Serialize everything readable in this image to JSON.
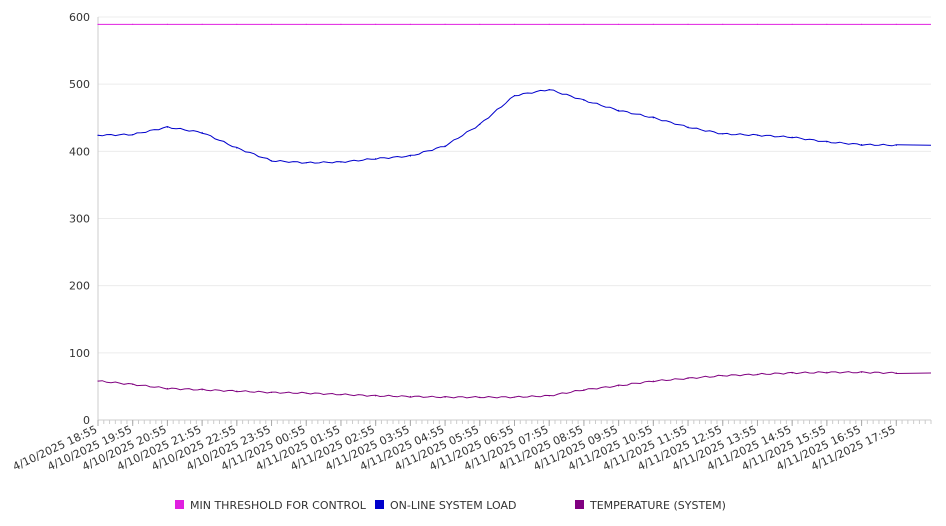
{
  "chart_data": {
    "type": "line",
    "ylim": [
      0,
      600
    ],
    "yticks": [
      0,
      100,
      200,
      300,
      400,
      500,
      600
    ],
    "grid": "horizontal",
    "legend_position": "bottom",
    "x": [
      "4/10/2025 18:55",
      "4/10/2025 19:55",
      "4/10/2025 20:55",
      "4/10/2025 21:55",
      "4/10/2025 22:55",
      "4/10/2025 23:55",
      "4/11/2025 00:55",
      "4/11/2025 01:55",
      "4/11/2025 02:55",
      "4/11/2025 03:55",
      "4/11/2025 04:55",
      "4/11/2025 05:55",
      "4/11/2025 06:55",
      "4/11/2025 07:55",
      "4/11/2025 08:55",
      "4/11/2025 09:55",
      "4/11/2025 10:55",
      "4/11/2025 11:55",
      "4/11/2025 12:55",
      "4/11/2025 13:55",
      "4/11/2025 14:55",
      "4/11/2025 15:55",
      "4/11/2025 16:55",
      "4/11/2025 17:55"
    ],
    "series": [
      {
        "name": "MIN THRESHOLD FOR CONTROL",
        "color": "#e020e0",
        "values": [
          589,
          589,
          589,
          589,
          589,
          589,
          589,
          589,
          589,
          589,
          589,
          589,
          589,
          589,
          589,
          589,
          589,
          589,
          589,
          589,
          589,
          589,
          589,
          589
        ]
      },
      {
        "name": "ON-LINE SYSTEM LOAD",
        "color": "#0000cc",
        "values": [
          424,
          425,
          436,
          428,
          405,
          386,
          383,
          384,
          389,
          393,
          408,
          440,
          483,
          492,
          476,
          461,
          450,
          436,
          426,
          424,
          421,
          414,
          410,
          409
        ]
      },
      {
        "name": "TEMPERATURE (SYSTEM)",
        "color": "#800080",
        "values": [
          58,
          53,
          47,
          45,
          43,
          41,
          40,
          38,
          36,
          35,
          34,
          34,
          34,
          36,
          45,
          51,
          58,
          62,
          66,
          68,
          70,
          71,
          71,
          70
        ]
      }
    ]
  }
}
